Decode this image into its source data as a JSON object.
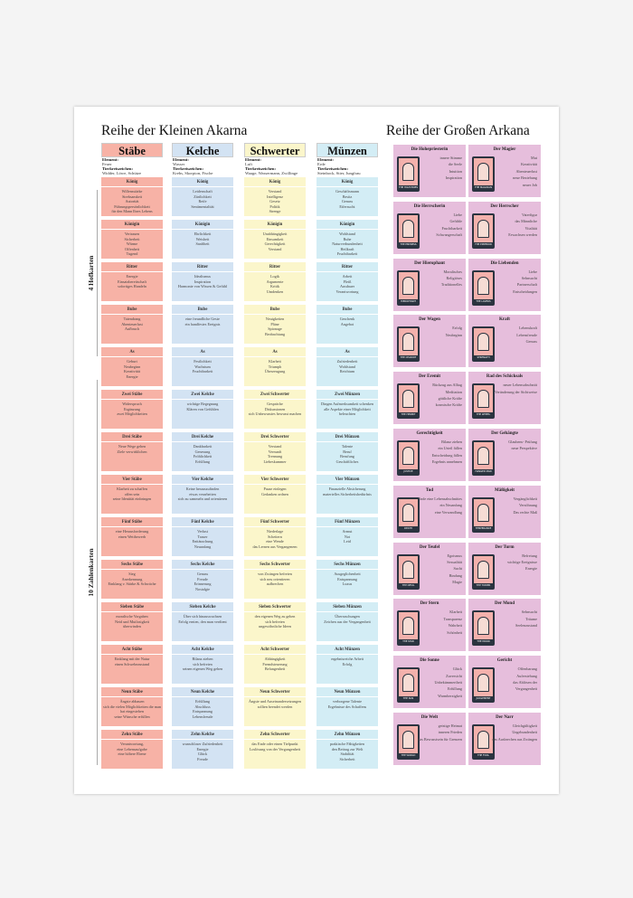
{
  "left_title": "Reihe der Kleinen Akarna",
  "right_title": "Reihe der Großen Arkana",
  "side_labels": {
    "court": "4 Hofkarten",
    "numbers": "10 Zahlenkarten"
  },
  "colors": {
    "staebe": "#f7b2a6",
    "kelche": "#d3e3f3",
    "schwerter": "#fbf6cb",
    "muenzen": "#d3edf5",
    "major": "#e6bedc",
    "card": "#f3b1ac",
    "card_border": "#2b3440"
  },
  "element_label": "Element:",
  "zodiac_label": "Tierkreiszeichen:",
  "suits": [
    {
      "name": "Stäbe",
      "element": "Feuer",
      "zodiac": "Widder, Löwe, Schütze",
      "cards": [
        {
          "title": "König",
          "lines": [
            "Willensstärke",
            "Strebsamkeit",
            "Autorität",
            "Führungspersönlichkeit",
            "für den Mann Ihres Lebens"
          ]
        },
        {
          "title": "Königin",
          "lines": [
            "Vertrauen",
            "Sicherheit",
            "Wärme",
            "Offenheit",
            "Tugend"
          ]
        },
        {
          "title": "Ritter",
          "lines": [
            "Energie",
            "Einsatzbereitschaft",
            "sofortiges Handeln"
          ]
        },
        {
          "title": "Bube",
          "lines": [
            "Tatendrang",
            "Abenteuerlust",
            "Aufbruch"
          ]
        },
        {
          "title": "As",
          "lines": [
            "Geburt",
            "Neubeginn",
            "Kreativität",
            "Energie"
          ]
        },
        {
          "title": "Zwei Stäbe",
          "lines": [
            "Widerspruch",
            "Ergänzung",
            "zwei Möglichkeiten"
          ]
        },
        {
          "title": "Drei Stäbe",
          "lines": [
            "Neue Wege gehen",
            "Ziele verwirklichen"
          ]
        },
        {
          "title": "Vier Stäbe",
          "lines": [
            "Klarheit zu schaffen",
            "offen sein",
            "seine Identität einbringen"
          ]
        },
        {
          "title": "Fünf Stäbe",
          "lines": [
            "eine Herausforderung",
            "einen Wettbewerb"
          ]
        },
        {
          "title": "Sechs Stäbe",
          "lines": [
            "Sieg",
            "Anerkennung",
            "Einklang v. Stärke & Schwäche"
          ]
        },
        {
          "title": "Sieben Stäbe",
          "lines": [
            "moralische Vorgaben",
            "Neid und Mutlosigkeit",
            "überwinden"
          ]
        },
        {
          "title": "Acht Stäbe",
          "lines": [
            "Einklang mit der Natur",
            "einen Schwebezustand"
          ]
        },
        {
          "title": "Neun Stäbe",
          "lines": [
            "Ängste abbauen",
            "sich die vielen Möglichkeiten die man hat eingestehen",
            "seine Wünsche erfüllen"
          ]
        },
        {
          "title": "Zehn Stäbe",
          "lines": [
            "Verantwortung,",
            "eine Lebensaufgabe",
            "eine höhere Ebene"
          ]
        }
      ]
    },
    {
      "name": "Kelche",
      "element": "Wasser",
      "zodiac": "Krebs, Skorpion, Fische",
      "cards": [
        {
          "title": "König",
          "lines": [
            "Leidenschaft",
            "Zärtlichkeit",
            "Reife",
            "Sentimentalität"
          ]
        },
        {
          "title": "Königin",
          "lines": [
            "Ehrlichkeit",
            "Weisheit",
            "Sanftheit"
          ]
        },
        {
          "title": "Ritter",
          "lines": [
            "Idealismus",
            "Inspiration",
            "Harmonie von Wissen & Gefühl"
          ]
        },
        {
          "title": "Bube",
          "lines": [
            "eine freundliche Geste",
            "ein handfestes Ereignis"
          ]
        },
        {
          "title": "As",
          "lines": [
            "Festlichkeit",
            "Wachstum",
            "Fruchtbarkeit"
          ]
        },
        {
          "title": "Zwei Kelche",
          "lines": [
            "wichtige Begegnung",
            "Klären von Gefühlen"
          ]
        },
        {
          "title": "Drei Kelche",
          "lines": [
            "Dankbarkeit",
            "Genesung",
            "Fröhlichkeit",
            "Erfüllung"
          ]
        },
        {
          "title": "Vier Kelche",
          "lines": [
            "Keine herauszufinden",
            "etwas verarbeiten",
            "sich zu sammeln und orientieren"
          ]
        },
        {
          "title": "Fünf Kelche",
          "lines": [
            "Verlust",
            "Trauer",
            "Enttäuschung",
            "Neuanfang"
          ]
        },
        {
          "title": "Sechs Kelche",
          "lines": [
            "Genuss",
            "Freude",
            "Erinnerung",
            "Nostalgie"
          ]
        },
        {
          "title": "Sieben Kelche",
          "lines": [
            "Über sich hinauswachsen",
            "Erfolg ernten, den man verdient"
          ]
        },
        {
          "title": "Acht Kelche",
          "lines": [
            "Bilanz ziehen",
            "sich befreien",
            "seinen eigenen Weg gehen"
          ]
        },
        {
          "title": "Neun Kelche",
          "lines": [
            "Erfüllung",
            "Abschluss",
            "Entspannung",
            "Lebensfreude"
          ]
        },
        {
          "title": "Zehn Kelche",
          "lines": [
            "wunschloser Zufriedenheit",
            "Energie",
            "Glück",
            "Freude"
          ]
        }
      ]
    },
    {
      "name": "Schwerter",
      "element": "Luft",
      "zodiac": "Waage, Wassermann, Zwillinge",
      "cards": [
        {
          "title": "König",
          "lines": [
            "Verstand",
            "Intelligenz",
            "Gesetz",
            "Politik",
            "Strenge"
          ]
        },
        {
          "title": "Königin",
          "lines": [
            "Unabhängigkeit",
            "Einsamkeit",
            "Gerechtigkeit",
            "Verstand"
          ]
        },
        {
          "title": "Ritter",
          "lines": [
            "Logik",
            "Argumente",
            "Kritik",
            "Umdenken"
          ]
        },
        {
          "title": "Bube",
          "lines": [
            "Neuigkeiten",
            "Pläne",
            "Spionage",
            "Beobachtung"
          ]
        },
        {
          "title": "As",
          "lines": [
            "Klarheit",
            "Triumph",
            "Überzeugung"
          ]
        },
        {
          "title": "Zwei Schwerter",
          "lines": [
            "Gespräche",
            "Diskussionen",
            "sich Unbewusstes bewusst machen"
          ]
        },
        {
          "title": "Drei Schwerter",
          "lines": [
            "Verstand",
            "Vernunft",
            "Trennung",
            "Liebeskummer"
          ]
        },
        {
          "title": "Vier Schwerter",
          "lines": [
            "Pause einlegen",
            "Gedanken ordnen"
          ]
        },
        {
          "title": "Fünf Schwerter",
          "lines": [
            "Niederlage",
            "Scheitern",
            "eine Wende",
            "das Lernen aus Vergangenem"
          ]
        },
        {
          "title": "Sechs Schwerter",
          "lines": [
            "von Zwängen befreien",
            "sich neu orientieren",
            "aufbrechen"
          ]
        },
        {
          "title": "Sieben Schwerter",
          "lines": [
            "den eigenen Weg zu gehen",
            "sich befreien",
            "ungewöhnliche Ideen"
          ]
        },
        {
          "title": "Acht Schwerter",
          "lines": [
            "Abhängigkeit",
            "Fremdsteuerung",
            "Befangenheit"
          ]
        },
        {
          "title": "Neun Schwerter",
          "lines": [
            "Ängste und Auseinandersetzungen sollten beendet werden"
          ]
        },
        {
          "title": "Zehn Schwerter",
          "lines": [
            "das Ende oder einen Tiefpunkt",
            "Loslösung von der Vergangenheit"
          ]
        }
      ]
    },
    {
      "name": "Münzen",
      "element": "Erde",
      "zodiac": "Steinbock, Stier, Jungfrau",
      "cards": [
        {
          "title": "König",
          "lines": [
            "Geschäftsmann",
            "Besitz",
            "Genuss",
            "Eifersucht"
          ]
        },
        {
          "title": "Königin",
          "lines": [
            "Wohlstand",
            "Ruhe",
            "Naturverbundenheit",
            "Heilkraft",
            "Fruchtbarkeit"
          ]
        },
        {
          "title": "Ritter",
          "lines": [
            "Arbeit",
            "Fleiß",
            "Ausdauer",
            "Verantwortung"
          ]
        },
        {
          "title": "Bube",
          "lines": [
            "Geschenk",
            "Angebot"
          ]
        },
        {
          "title": "As",
          "lines": [
            "Zufriedenheit",
            "Wohlstand",
            "Reichtum"
          ]
        },
        {
          "title": "Zwei Münzen",
          "lines": [
            "Dingen Aufmerksamkeit schenken",
            "alle Aspekte einer Möglichkeit beleuchten"
          ]
        },
        {
          "title": "Drei Münzen",
          "lines": [
            "Talente",
            "Beruf",
            "Berufung",
            "Geschäftliches"
          ]
        },
        {
          "title": "Vier Münzen",
          "lines": [
            "Finanzielle Absicherung",
            "materielles Sicherheitsbedürfnis"
          ]
        },
        {
          "title": "Fünf Münzen",
          "lines": [
            "Armut",
            "Not",
            "Leid"
          ]
        },
        {
          "title": "Sechs Münzen",
          "lines": [
            "Ausgeglichenheit",
            "Entspannung",
            "Luxus"
          ]
        },
        {
          "title": "Sieben Münzen",
          "lines": [
            "Überraschungen",
            "Zeichen aus der Vergangenheit"
          ]
        },
        {
          "title": "Acht Münzen",
          "lines": [
            "ergebnisreiche Arbeit",
            "Erfolg"
          ]
        },
        {
          "title": "Neun Münzen",
          "lines": [
            "verborgene Talente",
            "Ergebnisse des Schaffens"
          ]
        },
        {
          "title": "Zehn Münzen",
          "lines": [
            "praktische Fähigkeiten",
            "den Beitrag zur Welt",
            "Stabilität",
            "Sicherheit"
          ]
        }
      ]
    }
  ],
  "major": [
    {
      "title": "Die Hohepriesterin",
      "card_label": "THE HIGH PRIESTESS",
      "lines": [
        "innere Stimme",
        "die Seele",
        "Intuition",
        "Inspiration"
      ]
    },
    {
      "title": "Der Magier",
      "card_label": "THE MAGICIAN",
      "lines": [
        "Mut",
        "Kreativität",
        "Abenteuerlust",
        "neue Beziehung",
        "neuer Job"
      ]
    },
    {
      "title": "Die Herrscherin",
      "card_label": "THE EMPRESS",
      "lines": [
        "Liebe",
        "Gefühle",
        "Fruchtbarkeit",
        "Schwangerschaft"
      ]
    },
    {
      "title": "Der Herrscher",
      "card_label": "THE EMPEROR",
      "lines": [
        "Vaterfigur",
        "das Männliche",
        "Vitalität",
        "Erwachsen werden"
      ]
    },
    {
      "title": "Der Hierophant",
      "card_label": "HIEROPHANT",
      "lines": [
        "Moralisches",
        "Religiöses",
        "Traditionelles"
      ]
    },
    {
      "title": "Die Liebenden",
      "card_label": "THE LOVERS",
      "lines": [
        "Liebe",
        "Sehnsucht",
        "Partnerschaft",
        "Entscheidungen"
      ]
    },
    {
      "title": "Der Wagen",
      "card_label": "THE CHARIOT",
      "lines": [
        "Erfolg",
        "Neubeginn"
      ]
    },
    {
      "title": "Kraft",
      "card_label": "STRENGTH",
      "lines": [
        "Lebenskraft",
        "Lebensfreude",
        "Genuss"
      ]
    },
    {
      "title": "Der Eremit",
      "card_label": "THE HERMIT",
      "lines": [
        "Rückzug aus Alltag",
        "Meditation",
        "göttliche Kräfte",
        "kosmische Kräfte"
      ]
    },
    {
      "title": "Rad des Schicksals",
      "card_label": "THE WHEEL",
      "lines": [
        "neuer Lebensabschnitt",
        "Veränderung der Sichtweise"
      ]
    },
    {
      "title": "Gerechtigkeit",
      "card_label": "JUSTICE",
      "lines": [
        "Bilanz ziehen",
        "ein Urteil fällen",
        "Entscheidung fällen",
        "Ergebnis annehmen"
      ]
    },
    {
      "title": "Der Gehängte",
      "card_label": "HANGED MAN",
      "lines": [
        "Glaubens- Prüfung",
        "neue Perspektive"
      ]
    },
    {
      "title": "Tod",
      "card_label": "DEATH",
      "lines": [
        "Ende eine Lebensabschnittes",
        "ein Neuanfang",
        "eine Verwandlung"
      ]
    },
    {
      "title": "Mäßigkeit",
      "card_label": "TEMPERANCE",
      "lines": [
        "Vergänglichkeit",
        "Versöhnung",
        "Das rechte Maß"
      ]
    },
    {
      "title": "Der Teufel",
      "card_label": "THE DEVIL",
      "lines": [
        "Egoismus",
        "Sexualität",
        "Sucht",
        "Bindung",
        "Magie"
      ]
    },
    {
      "title": "Der Turm",
      "card_label": "THE TOWER",
      "lines": [
        "Befreiung",
        "wichtige Ereignisse",
        "Energie"
      ]
    },
    {
      "title": "Der Stern",
      "card_label": "THE STAR",
      "lines": [
        "Klarheit",
        "Transparenz",
        "Wahrheit",
        "Schönheit"
      ]
    },
    {
      "title": "Der Mond",
      "card_label": "THE MOON",
      "lines": [
        "Sehnsucht",
        "Träume",
        "Seelenzustand"
      ]
    },
    {
      "title": "Die Sonne",
      "card_label": "THE SUN",
      "lines": [
        "Glück",
        "Zuversicht",
        "Unbekümmertheit",
        "Erfüllung",
        "Warmherzigkeit"
      ]
    },
    {
      "title": "Gericht",
      "card_label": "JUDGEMENT",
      "lines": [
        "Offenbarung",
        "Auferstehung",
        "das Ablösen der Vergangenheit"
      ]
    },
    {
      "title": "Die Welt",
      "card_label": "THE WORLD",
      "lines": [
        "geistige Heimat",
        "inneren Frieden",
        "das Bewusstsein für Grenzen"
      ]
    },
    {
      "title": "Der Narr",
      "card_label": "THE FOOL",
      "lines": [
        "Gleichgültigkeit",
        "Ungebundenheit",
        "das Ausbrechen aus Zwängen"
      ]
    }
  ]
}
